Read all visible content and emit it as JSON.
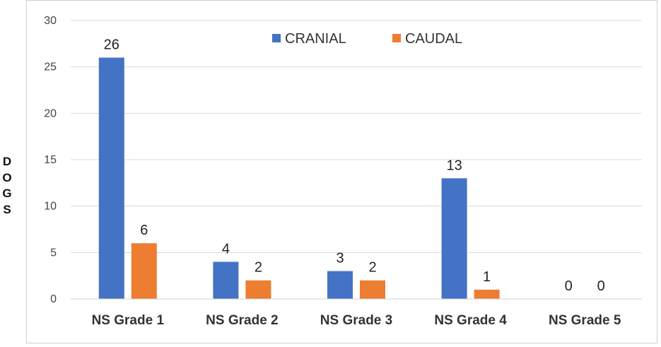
{
  "chart_data": {
    "type": "bar",
    "categories": [
      "NS Grade 1",
      "NS Grade 2",
      "NS Grade 3",
      "NS Grade 4",
      "NS Grade 5"
    ],
    "series": [
      {
        "name": "CRANIAL",
        "values": [
          26,
          4,
          3,
          13,
          0
        ],
        "color": "#4472c4"
      },
      {
        "name": "CAUDAL",
        "values": [
          6,
          2,
          2,
          1,
          0
        ],
        "color": "#ed7d31"
      }
    ],
    "ylabel": "DOGS",
    "ylim": [
      0,
      30
    ],
    "yticks": [
      0,
      5,
      10,
      15,
      20,
      25,
      30
    ],
    "grid": true,
    "legend_position": "top-center",
    "data_labels": true
  }
}
